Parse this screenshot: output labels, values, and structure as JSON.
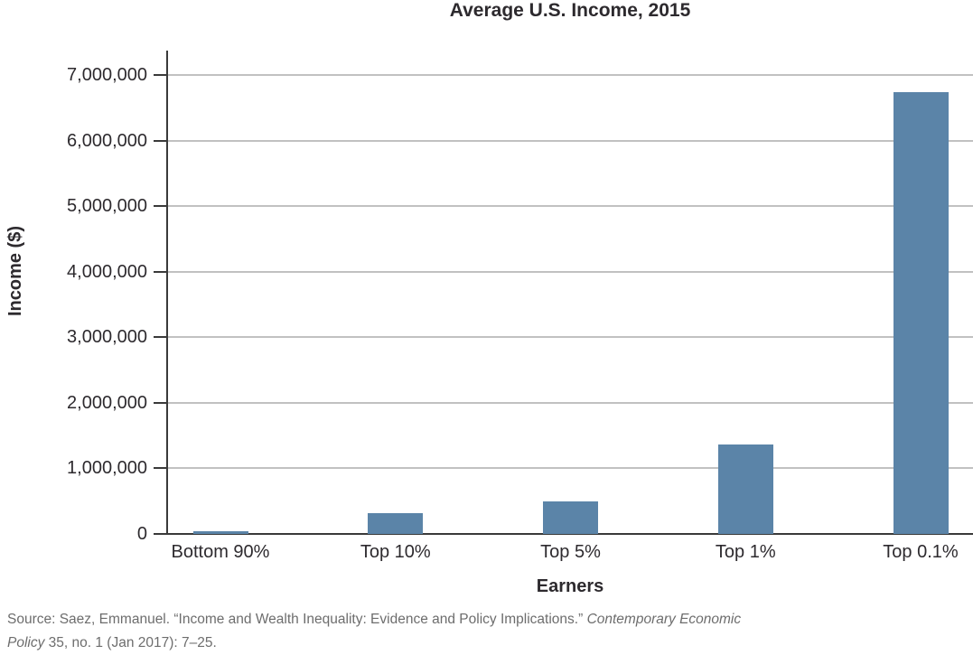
{
  "chart_data": {
    "type": "bar",
    "title": "Average U.S. Income, 2015",
    "xlabel": "Earners",
    "ylabel": "Income ($)",
    "categories": [
      "Bottom 90%",
      "Top 10%",
      "Top 5%",
      "Top 1%",
      "Top 0.1%"
    ],
    "values": [
      40000,
      320000,
      490000,
      1360000,
      6740000
    ],
    "ylim": [
      0,
      7000000
    ],
    "yticks": [
      0,
      1000000,
      2000000,
      3000000,
      4000000,
      5000000,
      6000000,
      7000000
    ],
    "ytick_labels": [
      "0",
      "1,000,000",
      "2,000,000",
      "3,000,000",
      "4,000,000",
      "5,000,000",
      "6,000,000",
      "7,000,000"
    ],
    "grid": "horizontal",
    "legend": "none",
    "colors": {
      "bar": "#5b84a8",
      "gridline": "#c1c1c1",
      "axis": "#3a3a3a",
      "text": "#2d2a2e",
      "source_text": "#6d6d6d"
    }
  },
  "source": {
    "lines": [
      [
        {
          "text": "Source: Saez, Emmanuel. “Income and Wealth Inequality: Evidence and Policy Implications.” ",
          "italic": false
        },
        {
          "text": "Contemporary Economic",
          "italic": true
        }
      ],
      [
        {
          "text": "Policy",
          "italic": true
        },
        {
          "text": " 35, no. 1 (Jan 2017): 7–25.",
          "italic": false
        }
      ]
    ]
  }
}
